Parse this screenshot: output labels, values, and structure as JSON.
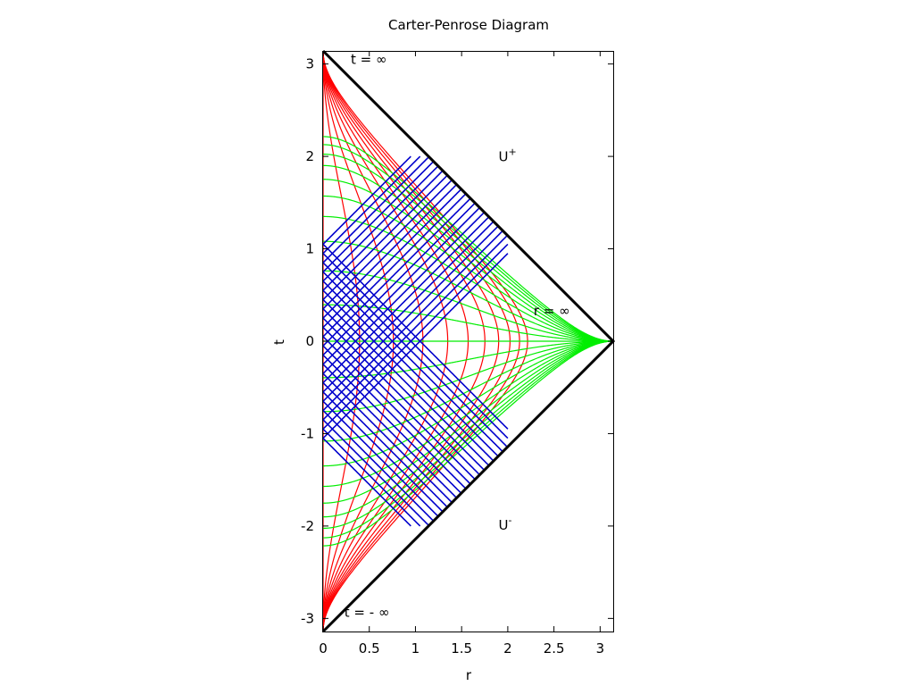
{
  "chart_data": {
    "type": "line",
    "title": "Carter-Penrose Diagram",
    "xlabel": "r",
    "ylabel": "t",
    "xlim": [
      0,
      3.14159
    ],
    "ylim": [
      -3.14159,
      3.14159
    ],
    "grid": false,
    "x_ticks": [
      0,
      0.5,
      1,
      1.5,
      2,
      2.5,
      3
    ],
    "x_tick_labels": [
      "0",
      "0.5",
      "1",
      "1.5",
      "2",
      "2.5",
      "3"
    ],
    "y_ticks": [
      -3,
      -2,
      -1,
      0,
      1,
      2,
      3
    ],
    "y_tick_labels": [
      "-3",
      "-2",
      "-1",
      "0",
      "1",
      "2",
      "3"
    ],
    "annotations": [
      {
        "text": "t = ∞",
        "x": 0.3,
        "y": 3.0
      },
      {
        "text": "t = - ∞",
        "x": 0.23,
        "y": -2.98
      },
      {
        "text": "r = ∞",
        "x": 2.28,
        "y": 0.28
      },
      {
        "text": "U",
        "sup": "+",
        "x": 1.9,
        "y": 1.95
      },
      {
        "text": "U",
        "sup": "-",
        "x": 1.9,
        "y": -2.04
      }
    ],
    "colors": {
      "boundary": "#000000",
      "constant_r": "#ff0000",
      "constant_t": "#00ee00",
      "null_lines": "#0000cc"
    },
    "series": [
      {
        "family": "constant_r",
        "color": "#ff0000",
        "r_values": [
          0,
          0.2,
          0.4,
          0.6,
          0.8,
          1.0,
          1.2,
          1.4,
          1.6,
          1.8,
          2.0
        ]
      },
      {
        "family": "constant_t",
        "color": "#00ee00",
        "t_values": [
          -2.0,
          -1.8,
          -1.6,
          -1.4,
          -1.2,
          -1.0,
          -0.8,
          -0.6,
          -0.4,
          -0.2,
          0,
          0.2,
          0.4,
          0.6,
          0.8,
          1.0,
          1.2,
          1.4,
          1.6,
          1.8,
          2.0
        ]
      },
      {
        "family": "null_lines",
        "color": "#0000cc",
        "v_values": [
          -1.05,
          -0.95,
          -0.85,
          -0.75,
          -0.65,
          -0.55,
          -0.45,
          -0.35,
          -0.25,
          -0.15,
          -0.05,
          0.05,
          0.15,
          0.25,
          0.35,
          0.45,
          0.55,
          0.65,
          0.75,
          0.85,
          0.95,
          1.05
        ],
        "u_values": [
          -1.05,
          -0.95,
          -0.85,
          -0.75,
          -0.65,
          -0.55,
          -0.45,
          -0.35,
          -0.25,
          -0.15,
          -0.05,
          0.05,
          0.15,
          0.25,
          0.35,
          0.45,
          0.55,
          0.65,
          0.75,
          0.85,
          0.95,
          1.05
        ]
      }
    ]
  }
}
